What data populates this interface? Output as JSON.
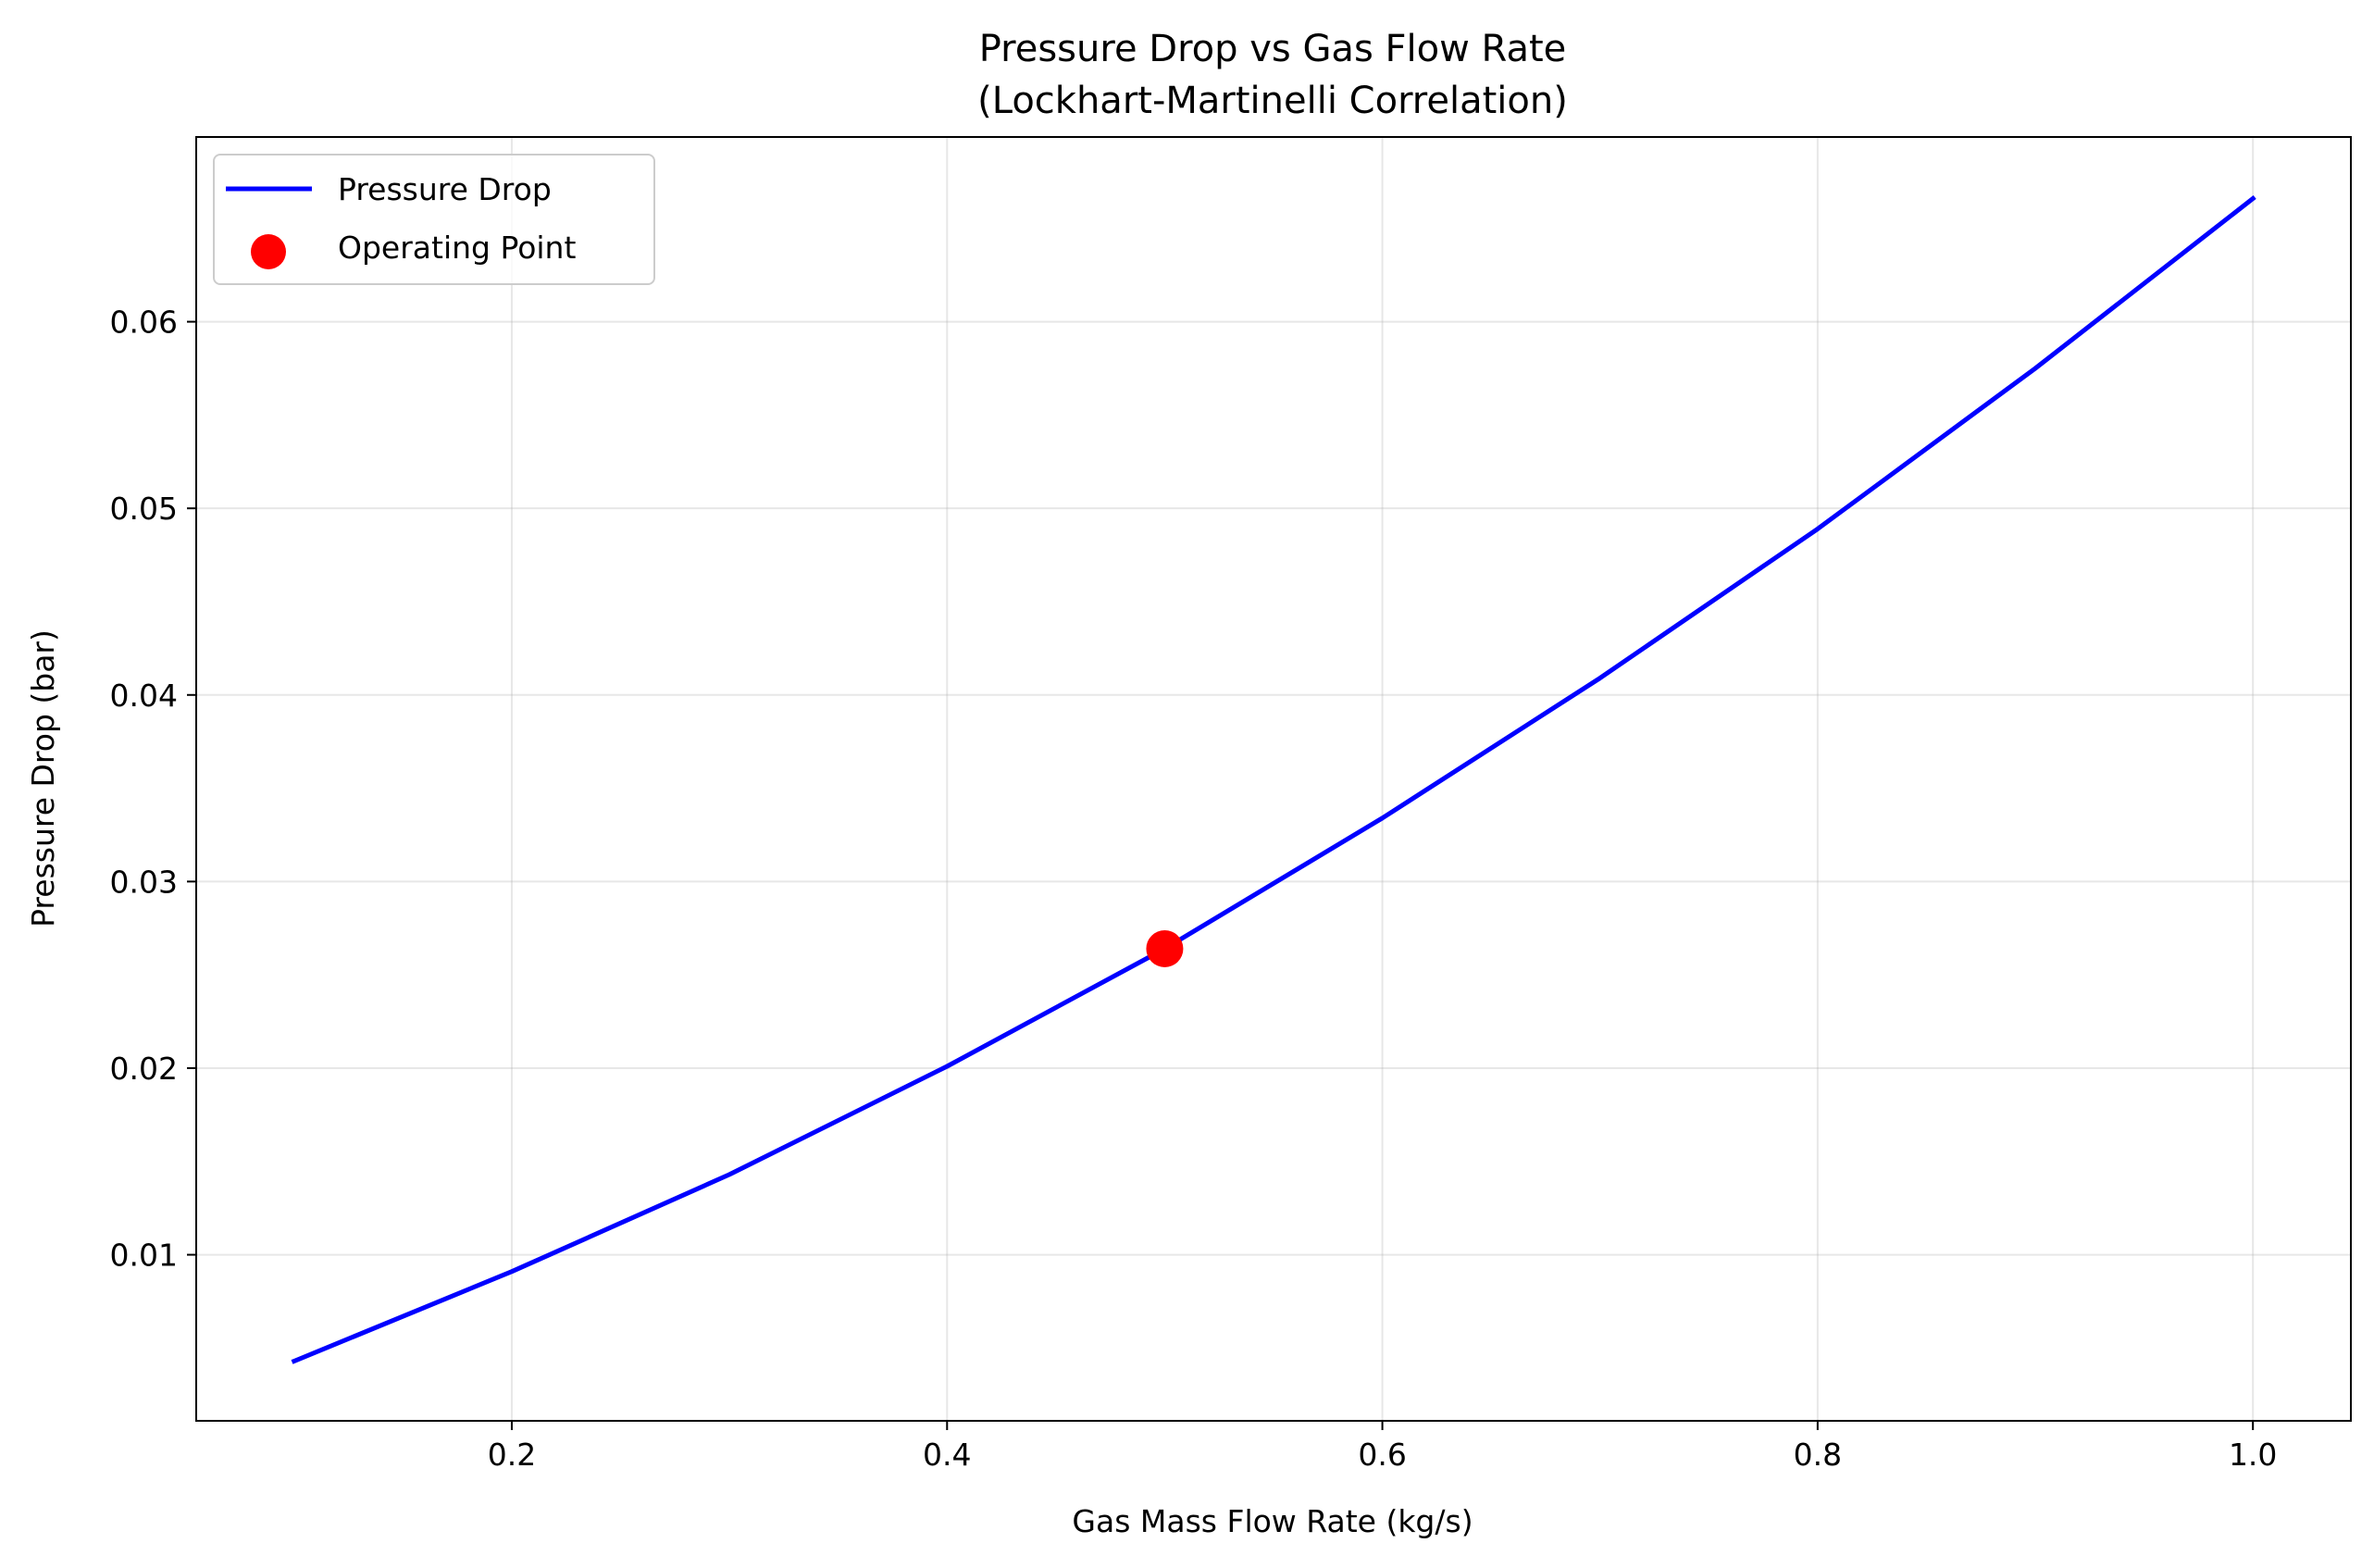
{
  "chart_data": {
    "type": "line",
    "title": "Pressure Drop vs Gas Flow Rate",
    "subtitle": "(Lockhart-Martinelli Correlation)",
    "xlabel": "Gas Mass Flow Rate (kg/s)",
    "ylabel": "Pressure Drop (bar)",
    "xlim": [
      0.055,
      1.045
    ],
    "ylim": [
      0.0011,
      0.0699
    ],
    "xticks": [
      0.2,
      0.4,
      0.6,
      0.8,
      1.0
    ],
    "xtick_labels": [
      "0.2",
      "0.4",
      "0.6",
      "0.8",
      "1.0"
    ],
    "yticks": [
      0.01,
      0.02,
      0.03,
      0.04,
      0.05,
      0.06
    ],
    "ytick_labels": [
      "0.01",
      "0.02",
      "0.03",
      "0.04",
      "0.05",
      "0.06"
    ],
    "grid": true,
    "legend_position": "upper-left",
    "series": [
      {
        "name": "Pressure Drop",
        "kind": "line",
        "color": "#0000ff",
        "x": [
          0.1,
          0.2,
          0.3,
          0.4,
          0.5,
          0.6,
          0.7,
          0.8,
          0.9,
          1.0
        ],
        "y": [
          0.0043,
          0.0091,
          0.0143,
          0.0201,
          0.0264,
          0.0334,
          0.0409,
          0.0489,
          0.0575,
          0.0666
        ]
      },
      {
        "name": "Operating Point",
        "kind": "scatter",
        "color": "#ff0000",
        "x": [
          0.5
        ],
        "y": [
          0.0264
        ]
      }
    ]
  }
}
